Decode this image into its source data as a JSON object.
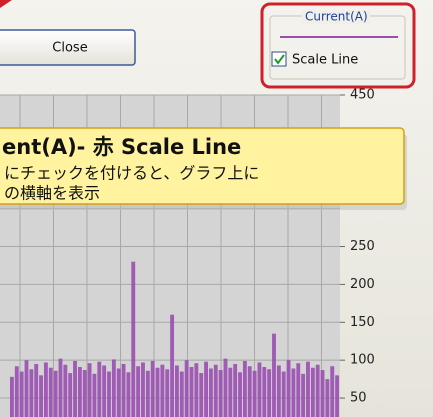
{
  "window": {
    "close_button": "Close",
    "group_label": "Current(A)",
    "checkbox_label": "Scale Line"
  },
  "callout": {
    "title": "ent(A)- 赤 Scale Line",
    "lines": [
      "にチェックを付けると、グラフ上に",
      "の横軸を表示"
    ]
  },
  "chart": {
    "color": "#9a4fb0",
    "ylim": [
      25,
      450
    ],
    "yticks": [
      50,
      100,
      150,
      200,
      250,
      450
    ],
    "values": [
      78,
      92,
      85,
      100,
      88,
      95,
      80,
      97,
      90,
      86,
      102,
      94,
      83,
      99,
      91,
      87,
      96,
      82,
      98,
      93,
      85,
      101,
      89,
      95,
      84,
      230,
      92,
      97,
      86,
      99,
      90,
      94,
      88,
      160,
      93,
      85,
      100,
      91,
      96,
      83,
      98,
      89,
      94,
      87,
      102,
      90,
      95,
      84,
      99,
      92,
      86,
      97,
      91,
      88,
      135,
      93,
      85,
      100,
      89,
      96,
      82,
      98,
      90,
      94,
      87,
      75,
      92,
      80
    ]
  }
}
